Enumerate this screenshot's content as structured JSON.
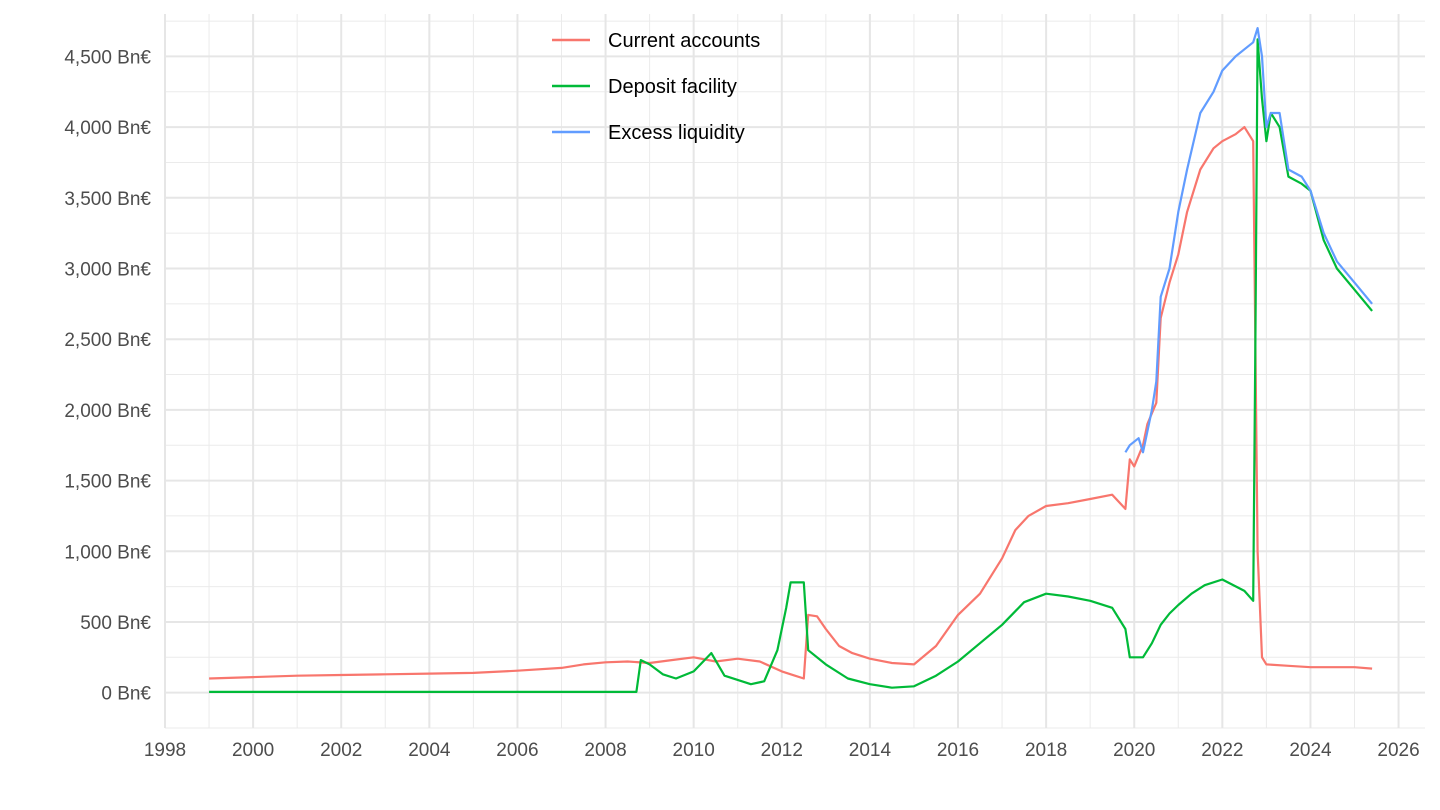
{
  "chart_data": {
    "type": "line",
    "title": "",
    "xlabel": "",
    "ylabel": "",
    "xlim": [
      1998,
      2026.6
    ],
    "ylim": [
      -250,
      4800
    ],
    "x_ticks": [
      1998,
      2000,
      2002,
      2004,
      2006,
      2008,
      2010,
      2012,
      2014,
      2016,
      2018,
      2020,
      2022,
      2024,
      2026
    ],
    "x_tick_labels": [
      "1998",
      "2000",
      "2002",
      "2004",
      "2006",
      "2008",
      "2010",
      "2012",
      "2014",
      "2016",
      "2018",
      "2020",
      "2022",
      "2024",
      "2026"
    ],
    "y_ticks": [
      0,
      500,
      1000,
      1500,
      2000,
      2500,
      3000,
      3500,
      4000,
      4500
    ],
    "y_tick_labels": [
      "0 Bn€",
      "500 Bn€",
      "1,000 Bn€",
      "1,500 Bn€",
      "2,000 Bn€",
      "2,500 Bn€",
      "3,000 Bn€",
      "3,500 Bn€",
      "4,000 Bn€",
      "4,500 Bn€"
    ],
    "grid": true,
    "legend_position": "top-center",
    "series": [
      {
        "name": "Current accounts",
        "color": "#F8766D",
        "x": [
          1999.0,
          2000.0,
          2001.0,
          2002.0,
          2003.0,
          2004.0,
          2005.0,
          2006.0,
          2007.0,
          2007.5,
          2008.0,
          2008.5,
          2009.0,
          2009.5,
          2010.0,
          2010.5,
          2011.0,
          2011.5,
          2012.0,
          2012.3,
          2012.5,
          2012.6,
          2012.8,
          2013.0,
          2013.3,
          2013.6,
          2014.0,
          2014.5,
          2015.0,
          2015.5,
          2016.0,
          2016.5,
          2017.0,
          2017.3,
          2017.6,
          2018.0,
          2018.5,
          2019.0,
          2019.5,
          2019.8,
          2019.9,
          2020.0,
          2020.2,
          2020.3,
          2020.5,
          2020.6,
          2020.8,
          2021.0,
          2021.2,
          2021.5,
          2021.8,
          2022.0,
          2022.3,
          2022.5,
          2022.7,
          2022.8,
          2022.9,
          2023.0,
          2023.5,
          2024.0,
          2024.5,
          2025.0,
          2025.4
        ],
        "values": [
          100,
          110,
          120,
          125,
          130,
          135,
          140,
          155,
          175,
          200,
          215,
          220,
          210,
          230,
          250,
          220,
          240,
          220,
          150,
          120,
          100,
          550,
          540,
          450,
          330,
          280,
          240,
          210,
          200,
          330,
          550,
          700,
          950,
          1150,
          1250,
          1320,
          1340,
          1370,
          1400,
          1300,
          1650,
          1600,
          1750,
          1900,
          2050,
          2650,
          2900,
          3100,
          3400,
          3700,
          3850,
          3900,
          3950,
          4000,
          3900,
          1000,
          250,
          200,
          190,
          180,
          180,
          180,
          170
        ]
      },
      {
        "name": "Deposit facility",
        "color": "#00BA38",
        "x": [
          1999.0,
          2001.0,
          2003.0,
          2005.0,
          2007.0,
          2008.7,
          2008.8,
          2009.0,
          2009.3,
          2009.6,
          2010.0,
          2010.4,
          2010.7,
          2011.0,
          2011.3,
          2011.6,
          2011.9,
          2012.1,
          2012.2,
          2012.5,
          2012.6,
          2013.0,
          2013.5,
          2014.0,
          2014.5,
          2015.0,
          2015.5,
          2016.0,
          2016.5,
          2017.0,
          2017.5,
          2018.0,
          2018.5,
          2019.0,
          2019.5,
          2019.8,
          2019.9,
          2020.2,
          2020.4,
          2020.6,
          2020.8,
          2021.0,
          2021.3,
          2021.6,
          2022.0,
          2022.5,
          2022.7,
          2022.75,
          2022.8,
          2022.9,
          2023.0,
          2023.1,
          2023.3,
          2023.5,
          2023.8,
          2024.0,
          2024.3,
          2024.6,
          2025.0,
          2025.4
        ],
        "values": [
          5,
          5,
          5,
          5,
          5,
          5,
          230,
          200,
          130,
          100,
          150,
          280,
          120,
          90,
          60,
          80,
          300,
          600,
          780,
          780,
          300,
          200,
          100,
          60,
          35,
          45,
          120,
          220,
          350,
          480,
          640,
          700,
          680,
          650,
          600,
          450,
          250,
          250,
          350,
          480,
          560,
          620,
          700,
          760,
          800,
          720,
          650,
          2500,
          4620,
          4200,
          3900,
          4100,
          4000,
          3650,
          3600,
          3550,
          3200,
          3000,
          2850,
          2700
        ]
      },
      {
        "name": "Excess liquidity",
        "color": "#619CFF",
        "x": [
          2019.8,
          2019.9,
          2020.1,
          2020.2,
          2020.4,
          2020.5,
          2020.6,
          2020.8,
          2021.0,
          2021.2,
          2021.5,
          2021.8,
          2022.0,
          2022.3,
          2022.5,
          2022.7,
          2022.8,
          2022.9,
          2023.0,
          2023.1,
          2023.3,
          2023.5,
          2023.8,
          2024.0,
          2024.3,
          2024.6,
          2025.0,
          2025.4
        ],
        "values": [
          1700,
          1750,
          1800,
          1700,
          2000,
          2200,
          2800,
          3000,
          3400,
          3700,
          4100,
          4250,
          4400,
          4500,
          4550,
          4600,
          4700,
          4500,
          4000,
          4100,
          4100,
          3700,
          3650,
          3550,
          3250,
          3050,
          2900,
          2750
        ]
      }
    ]
  }
}
